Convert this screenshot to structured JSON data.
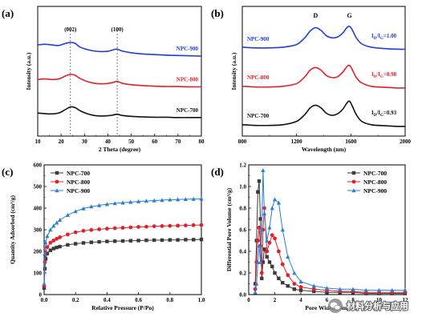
{
  "watermark": {
    "text": "材料分析与应用"
  },
  "chart_data": [
    {
      "type": "line",
      "panel": "(a)",
      "xlabel": "2 Theta (degree)",
      "ylabel": "Intensity (a.u.)",
      "xlim": [
        10,
        80
      ],
      "xticks": [
        "10",
        "20",
        "30",
        "40",
        "50",
        "60",
        "70",
        "80"
      ],
      "annotations": [
        "(002)",
        "(100)"
      ],
      "reference_lines_x": [
        24,
        44
      ],
      "series": [
        {
          "name": "NPC-900",
          "color": "#1f3fd6",
          "offset": 2.0,
          "x": [
            10,
            13,
            16,
            19,
            22,
            24,
            26,
            28,
            31,
            34,
            37,
            40,
            42,
            44,
            46,
            50,
            55,
            60,
            65,
            70,
            75,
            80
          ],
          "y": [
            0.42,
            0.44,
            0.42,
            0.4,
            0.47,
            0.5,
            0.47,
            0.35,
            0.27,
            0.22,
            0.2,
            0.21,
            0.25,
            0.28,
            0.22,
            0.16,
            0.12,
            0.1,
            0.08,
            0.07,
            0.06,
            0.05
          ]
        },
        {
          "name": "NPC-800",
          "color": "#e0202a",
          "offset": 1.0,
          "x": [
            10,
            13,
            16,
            19,
            22,
            24,
            26,
            28,
            31,
            34,
            37,
            40,
            42,
            44,
            46,
            50,
            55,
            60,
            65,
            70,
            75,
            80
          ],
          "y": [
            0.28,
            0.3,
            0.28,
            0.3,
            0.4,
            0.45,
            0.42,
            0.32,
            0.22,
            0.16,
            0.14,
            0.15,
            0.18,
            0.22,
            0.16,
            0.11,
            0.08,
            0.06,
            0.05,
            0.05,
            0.04,
            0.04
          ]
        },
        {
          "name": "NPC-700",
          "color": "#111111",
          "offset": 0.0,
          "x": [
            10,
            13,
            16,
            19,
            22,
            24,
            26,
            28,
            31,
            34,
            37,
            40,
            42,
            44,
            46,
            50,
            55,
            60,
            65,
            70,
            75,
            80
          ],
          "y": [
            0.18,
            0.16,
            0.15,
            0.18,
            0.3,
            0.38,
            0.36,
            0.26,
            0.16,
            0.1,
            0.08,
            0.09,
            0.11,
            0.14,
            0.1,
            0.07,
            0.05,
            0.04,
            0.04,
            0.03,
            0.03,
            0.03
          ]
        }
      ]
    },
    {
      "type": "line",
      "panel": "(b)",
      "xlabel": "Wavelength (nm)",
      "ylabel": "Intensity (a.u.)",
      "xlim": [
        800,
        2000
      ],
      "xticks": [
        "800",
        "1200",
        "1600",
        "2000"
      ],
      "peak_labels": [
        "D",
        "G"
      ],
      "series": [
        {
          "name": "NPC-900",
          "ratio": "1.00",
          "color": "#1f3fd6",
          "offset": 2.0,
          "x": [
            800,
            900,
            1000,
            1100,
            1200,
            1260,
            1300,
            1340,
            1380,
            1420,
            1460,
            1500,
            1540,
            1570,
            1590,
            1610,
            1640,
            1680,
            1750,
            1850,
            1950,
            2000
          ],
          "y": [
            0.12,
            0.1,
            0.1,
            0.12,
            0.2,
            0.4,
            0.6,
            0.7,
            0.62,
            0.46,
            0.4,
            0.42,
            0.54,
            0.7,
            0.74,
            0.64,
            0.4,
            0.22,
            0.12,
            0.08,
            0.06,
            0.06
          ]
        },
        {
          "name": "NPC-800",
          "ratio": "0.98",
          "color": "#e0202a",
          "offset": 1.0,
          "x": [
            800,
            900,
            1000,
            1100,
            1200,
            1260,
            1300,
            1340,
            1380,
            1420,
            1460,
            1500,
            1540,
            1570,
            1590,
            1610,
            1640,
            1680,
            1750,
            1850,
            1950,
            2000
          ],
          "y": [
            0.1,
            0.08,
            0.08,
            0.1,
            0.18,
            0.38,
            0.58,
            0.66,
            0.58,
            0.42,
            0.36,
            0.38,
            0.52,
            0.68,
            0.72,
            0.6,
            0.36,
            0.2,
            0.1,
            0.07,
            0.05,
            0.05
          ]
        },
        {
          "name": "NPC-700",
          "ratio": "0.93",
          "color": "#111111",
          "offset": 0.0,
          "x": [
            800,
            900,
            1000,
            1100,
            1200,
            1260,
            1300,
            1340,
            1380,
            1420,
            1460,
            1500,
            1540,
            1570,
            1590,
            1610,
            1640,
            1680,
            1750,
            1850,
            1950,
            2000
          ],
          "y": [
            0.1,
            0.08,
            0.08,
            0.1,
            0.2,
            0.4,
            0.6,
            0.68,
            0.6,
            0.44,
            0.38,
            0.42,
            0.56,
            0.74,
            0.8,
            0.66,
            0.4,
            0.2,
            0.1,
            0.07,
            0.05,
            0.05
          ]
        }
      ]
    },
    {
      "type": "line",
      "panel": "(c)",
      "xlabel": "Relative Pressure (P/Po)",
      "ylabel": "Quantity Adsorbed (cm³/g)",
      "xlim": [
        0,
        1.0
      ],
      "ylim": [
        0,
        600
      ],
      "xticks": [
        "0.0",
        "0.2",
        "0.4",
        "0.6",
        "0.8",
        "1.0"
      ],
      "yticks": [
        "0",
        "100",
        "200",
        "300",
        "400",
        "500",
        "600"
      ],
      "legend_position": "top-left",
      "series": [
        {
          "name": "NPC-700",
          "color": "#3a3a3a",
          "marker": "square",
          "x": [
            0.0,
            0.005,
            0.01,
            0.02,
            0.04,
            0.06,
            0.08,
            0.1,
            0.15,
            0.2,
            0.25,
            0.3,
            0.35,
            0.4,
            0.45,
            0.5,
            0.55,
            0.6,
            0.65,
            0.7,
            0.75,
            0.8,
            0.85,
            0.9,
            0.95,
            1.0
          ],
          "y": [
            30,
            120,
            165,
            190,
            205,
            213,
            218,
            222,
            230,
            235,
            239,
            242,
            244,
            246,
            247,
            248,
            249,
            250,
            251,
            252,
            252,
            253,
            253,
            254,
            254,
            255
          ]
        },
        {
          "name": "NPC-800",
          "color": "#e0202a",
          "marker": "circle",
          "x": [
            0.0,
            0.005,
            0.01,
            0.02,
            0.04,
            0.06,
            0.08,
            0.1,
            0.15,
            0.2,
            0.25,
            0.3,
            0.35,
            0.4,
            0.45,
            0.5,
            0.55,
            0.6,
            0.65,
            0.7,
            0.75,
            0.8,
            0.85,
            0.9,
            0.95,
            1.0
          ],
          "y": [
            40,
            150,
            195,
            220,
            240,
            250,
            258,
            265,
            278,
            288,
            295,
            299,
            302,
            305,
            307,
            309,
            311,
            313,
            314,
            316,
            317,
            318,
            319,
            320,
            321,
            322
          ]
        },
        {
          "name": "NPC-900",
          "color": "#2a7fd4",
          "marker": "triangle",
          "x": [
            0.0,
            0.005,
            0.01,
            0.02,
            0.04,
            0.06,
            0.08,
            0.1,
            0.15,
            0.2,
            0.25,
            0.3,
            0.35,
            0.4,
            0.45,
            0.5,
            0.55,
            0.6,
            0.65,
            0.7,
            0.75,
            0.8,
            0.85,
            0.9,
            0.95,
            1.0
          ],
          "y": [
            50,
            190,
            240,
            270,
            300,
            318,
            332,
            345,
            368,
            385,
            398,
            407,
            413,
            418,
            422,
            425,
            428,
            431,
            433,
            435,
            437,
            439,
            440,
            441,
            442,
            443
          ]
        }
      ]
    },
    {
      "type": "line",
      "panel": "(d)",
      "xlabel": "Pore Width (nm)",
      "ylabel": "Differential Pore Volume (cm³/g)",
      "xlim": [
        0,
        12
      ],
      "ylim": [
        0.0,
        1.2
      ],
      "xticks": [
        "0",
        "2",
        "4",
        "6",
        "8",
        "10",
        "12"
      ],
      "yticks": [
        "0.0",
        "0.2",
        "0.4",
        "0.6",
        "0.8",
        "1.0",
        "1.2"
      ],
      "legend_position": "top-right",
      "series": [
        {
          "name": "NPC-700",
          "color": "#3a3a3a",
          "marker": "square",
          "x": [
            0.5,
            0.6,
            0.7,
            0.8,
            0.9,
            1.0,
            1.1,
            1.2,
            1.4,
            1.6,
            1.8,
            2.0,
            2.3,
            2.6,
            3.0,
            3.5,
            4.0,
            5.0,
            6.0,
            7.0,
            8.0,
            9.0,
            10.0,
            11.0,
            12.0
          ],
          "y": [
            0.1,
            0.5,
            0.95,
            1.05,
            0.7,
            0.15,
            0.3,
            0.42,
            0.35,
            0.3,
            0.26,
            0.2,
            0.15,
            0.11,
            0.08,
            0.05,
            0.04,
            0.03,
            0.02,
            0.02,
            0.02,
            0.01,
            0.01,
            0.01,
            0.01
          ]
        },
        {
          "name": "NPC-800",
          "color": "#e0202a",
          "marker": "circle",
          "x": [
            0.5,
            0.6,
            0.7,
            0.8,
            0.9,
            1.0,
            1.1,
            1.2,
            1.4,
            1.6,
            1.8,
            2.0,
            2.3,
            2.6,
            3.0,
            3.5,
            4.0,
            5.0,
            6.0,
            7.0,
            8.0,
            9.0,
            10.0,
            11.0,
            12.0
          ],
          "y": [
            0.05,
            0.3,
            0.5,
            0.62,
            0.45,
            0.2,
            0.6,
            0.8,
            0.4,
            0.48,
            0.55,
            0.52,
            0.4,
            0.28,
            0.18,
            0.1,
            0.07,
            0.05,
            0.04,
            0.03,
            0.03,
            0.02,
            0.02,
            0.02,
            0.02
          ]
        },
        {
          "name": "NPC-900",
          "color": "#2a7fd4",
          "marker": "triangle",
          "x": [
            0.5,
            0.6,
            0.7,
            0.8,
            0.9,
            1.0,
            1.1,
            1.2,
            1.4,
            1.6,
            1.8,
            2.0,
            2.3,
            2.6,
            3.0,
            3.5,
            4.0,
            5.0,
            6.0,
            7.0,
            8.0,
            9.0,
            10.0,
            11.0,
            12.0
          ],
          "y": [
            0.02,
            0.1,
            0.3,
            0.45,
            0.3,
            0.6,
            1.15,
            0.75,
            0.5,
            0.62,
            0.8,
            0.88,
            0.85,
            0.6,
            0.35,
            0.2,
            0.12,
            0.08,
            0.06,
            0.05,
            0.05,
            0.04,
            0.04,
            0.04,
            0.04
          ]
        }
      ]
    }
  ]
}
